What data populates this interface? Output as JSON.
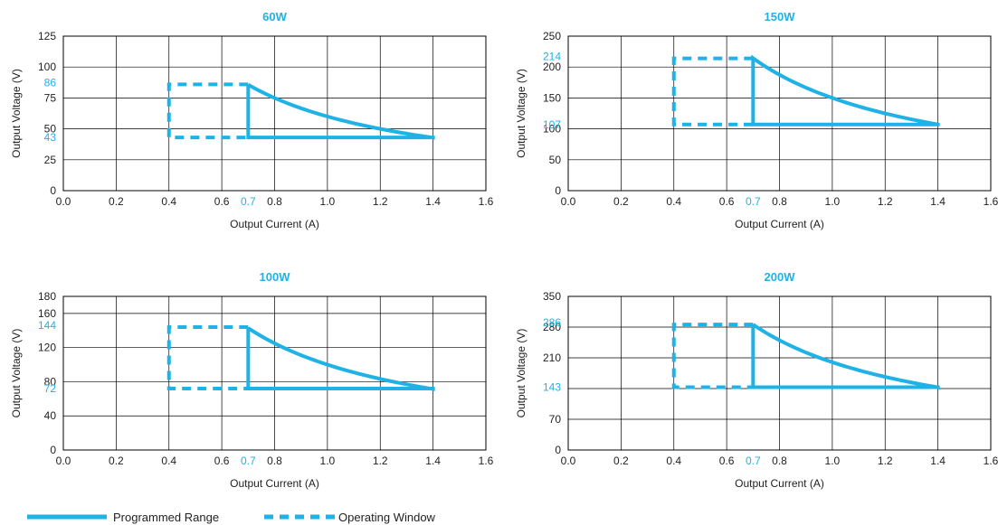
{
  "colors": {
    "accent": "#1fb2e6",
    "axis": "#000000",
    "grid": "#000000",
    "text": "#222222"
  },
  "legend": [
    {
      "label": "Programmed Range",
      "style": "solid"
    },
    {
      "label": "Operating Window",
      "style": "dashed"
    }
  ],
  "chart_data": [
    {
      "type": "line",
      "title": "60W",
      "xlabel": "Output Current (A)",
      "ylabel": "Output Voltage (V)",
      "xlim": [
        0.0,
        1.6
      ],
      "ylim": [
        0,
        125
      ],
      "x_ticks": [
        "0.0",
        "0.2",
        "0.4",
        "0.6",
        "0.8",
        "1.0",
        "1.2",
        "1.4",
        "1.6"
      ],
      "y_ticks": [
        0,
        25,
        50,
        75,
        100,
        125
      ],
      "highlight_x": "0.7",
      "highlight_y": [
        "86",
        "43"
      ],
      "series": [
        {
          "name": "Programmed Range",
          "power_w": 60,
          "i_min": 0.7,
          "i_max": 1.4,
          "v_min": 43,
          "v_max": 86
        },
        {
          "name": "Operating Window",
          "i_min": 0.4,
          "i_max": 0.7,
          "v_min": 43,
          "v_max": 86
        }
      ]
    },
    {
      "type": "line",
      "title": "150W",
      "xlabel": "Output Current (A)",
      "ylabel": "Output Voltage (V)",
      "xlim": [
        0.0,
        1.6
      ],
      "ylim": [
        0,
        250
      ],
      "x_ticks": [
        "0.0",
        "0.2",
        "0.4",
        "0.6",
        "0.8",
        "1.0",
        "1.2",
        "1.4",
        "1.6"
      ],
      "y_ticks": [
        0,
        50,
        100,
        150,
        200,
        250
      ],
      "highlight_x": "0.7",
      "highlight_y": [
        "214",
        "107"
      ],
      "series": [
        {
          "name": "Programmed Range",
          "power_w": 150,
          "i_min": 0.7,
          "i_max": 1.4,
          "v_min": 107,
          "v_max": 214
        },
        {
          "name": "Operating Window",
          "i_min": 0.4,
          "i_max": 0.7,
          "v_min": 107,
          "v_max": 214
        }
      ]
    },
    {
      "type": "line",
      "title": "100W",
      "xlabel": "Output Current (A)",
      "ylabel": "Output Voltage (V)",
      "xlim": [
        0.0,
        1.6
      ],
      "ylim": [
        0,
        180
      ],
      "x_ticks": [
        "0.0",
        "0.2",
        "0.4",
        "0.6",
        "0.8",
        "1.0",
        "1.2",
        "1.4",
        "1.6"
      ],
      "y_ticks": [
        0,
        40,
        80,
        120,
        160,
        180
      ],
      "highlight_x": "0.7",
      "highlight_y": [
        "144",
        "72"
      ],
      "series": [
        {
          "name": "Programmed Range",
          "power_w": 100,
          "i_min": 0.7,
          "i_max": 1.4,
          "v_min": 72,
          "v_max": 144
        },
        {
          "name": "Operating Window",
          "i_min": 0.4,
          "i_max": 0.7,
          "v_min": 72,
          "v_max": 144
        }
      ]
    },
    {
      "type": "line",
      "title": "200W",
      "xlabel": "Output Current (A)",
      "ylabel": "Output Voltage (V)",
      "xlim": [
        0.0,
        1.6
      ],
      "ylim": [
        0,
        350
      ],
      "x_ticks": [
        "0.0",
        "0.2",
        "0.4",
        "0.6",
        "0.8",
        "1.0",
        "1.2",
        "1.4",
        "1.6"
      ],
      "y_ticks": [
        0,
        70,
        140,
        210,
        280,
        350
      ],
      "y_tick_labels": [
        "0",
        "70",
        "",
        "210",
        "280",
        "350"
      ],
      "highlight_x": "0.7",
      "highlight_y": [
        "286",
        "143"
      ],
      "series": [
        {
          "name": "Programmed Range",
          "power_w": 200,
          "i_min": 0.7,
          "i_max": 1.4,
          "v_min": 143,
          "v_max": 286
        },
        {
          "name": "Operating Window",
          "i_min": 0.4,
          "i_max": 0.7,
          "v_min": 143,
          "v_max": 286
        }
      ]
    }
  ]
}
